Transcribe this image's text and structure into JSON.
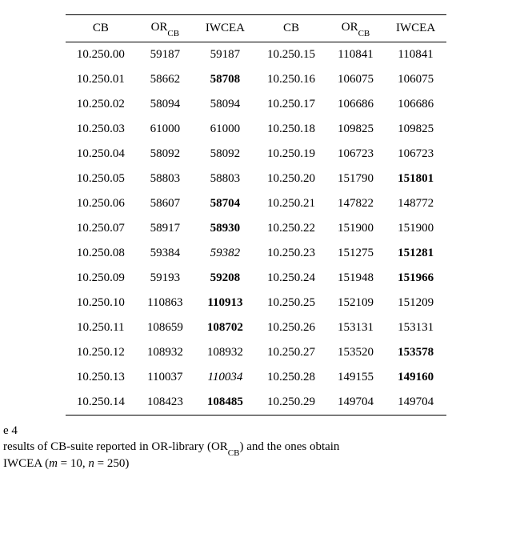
{
  "headers": {
    "cb": "CB",
    "or_base": "OR",
    "or_sub": "CB",
    "iwcea": "IWCEA"
  },
  "rows_left": [
    {
      "cb": "10.250.00",
      "or": "59187",
      "iw": "59187",
      "iw_style": ""
    },
    {
      "cb": "10.250.01",
      "or": "58662",
      "iw": "58708",
      "iw_style": "bold"
    },
    {
      "cb": "10.250.02",
      "or": "58094",
      "iw": "58094",
      "iw_style": ""
    },
    {
      "cb": "10.250.03",
      "or": "61000",
      "iw": "61000",
      "iw_style": ""
    },
    {
      "cb": "10.250.04",
      "or": "58092",
      "iw": "58092",
      "iw_style": ""
    },
    {
      "cb": "10.250.05",
      "or": "58803",
      "iw": "58803",
      "iw_style": ""
    },
    {
      "cb": "10.250.06",
      "or": "58607",
      "iw": "58704",
      "iw_style": "bold"
    },
    {
      "cb": "10.250.07",
      "or": "58917",
      "iw": "58930",
      "iw_style": "bold"
    },
    {
      "cb": "10.250.08",
      "or": "59384",
      "iw": "59382",
      "iw_style": "italic"
    },
    {
      "cb": "10.250.09",
      "or": "59193",
      "iw": "59208",
      "iw_style": "bold"
    },
    {
      "cb": "10.250.10",
      "or": "110863",
      "iw": "110913",
      "iw_style": "bold"
    },
    {
      "cb": "10.250.11",
      "or": "108659",
      "iw": "108702",
      "iw_style": "bold"
    },
    {
      "cb": "10.250.12",
      "or": "108932",
      "iw": "108932",
      "iw_style": ""
    },
    {
      "cb": "10.250.13",
      "or": "110037",
      "iw": "110034",
      "iw_style": "italic"
    },
    {
      "cb": "10.250.14",
      "or": "108423",
      "iw": "108485",
      "iw_style": "bold"
    }
  ],
  "rows_right": [
    {
      "cb": "10.250.15",
      "or": "110841",
      "iw": "110841",
      "iw_style": ""
    },
    {
      "cb": "10.250.16",
      "or": "106075",
      "iw": "106075",
      "iw_style": ""
    },
    {
      "cb": "10.250.17",
      "or": "106686",
      "iw": "106686",
      "iw_style": ""
    },
    {
      "cb": "10.250.18",
      "or": "109825",
      "iw": "109825",
      "iw_style": ""
    },
    {
      "cb": "10.250.19",
      "or": "106723",
      "iw": "106723",
      "iw_style": ""
    },
    {
      "cb": "10.250.20",
      "or": "151790",
      "iw": "151801",
      "iw_style": "bold"
    },
    {
      "cb": "10.250.21",
      "or": "147822",
      "iw": "148772",
      "iw_style": ""
    },
    {
      "cb": "10.250.22",
      "or": "151900",
      "iw": "151900",
      "iw_style": ""
    },
    {
      "cb": "10.250.23",
      "or": "151275",
      "iw": "151281",
      "iw_style": "bold"
    },
    {
      "cb": "10.250.24",
      "or": "151948",
      "iw": "151966",
      "iw_style": "bold"
    },
    {
      "cb": "10.250.25",
      "or": "152109",
      "iw": "151209",
      "iw_style": ""
    },
    {
      "cb": "10.250.26",
      "or": "153131",
      "iw": "153131",
      "iw_style": ""
    },
    {
      "cb": "10.250.27",
      "or": "153520",
      "iw": "153578",
      "iw_style": "bold"
    },
    {
      "cb": "10.250.28",
      "or": "149155",
      "iw": "149160",
      "iw_style": "bold"
    },
    {
      "cb": "10.250.29",
      "or": "149704",
      "iw": "149704",
      "iw_style": ""
    }
  ],
  "caption": {
    "label_prefix": "e 4",
    "line2_prefix": " results of CB-suite reported in OR-library (OR",
    "line2_sub": "CB",
    "line2_suffix": ") and the ones obtain",
    "line3": "IWCEA (m = 10, n = 250)"
  }
}
